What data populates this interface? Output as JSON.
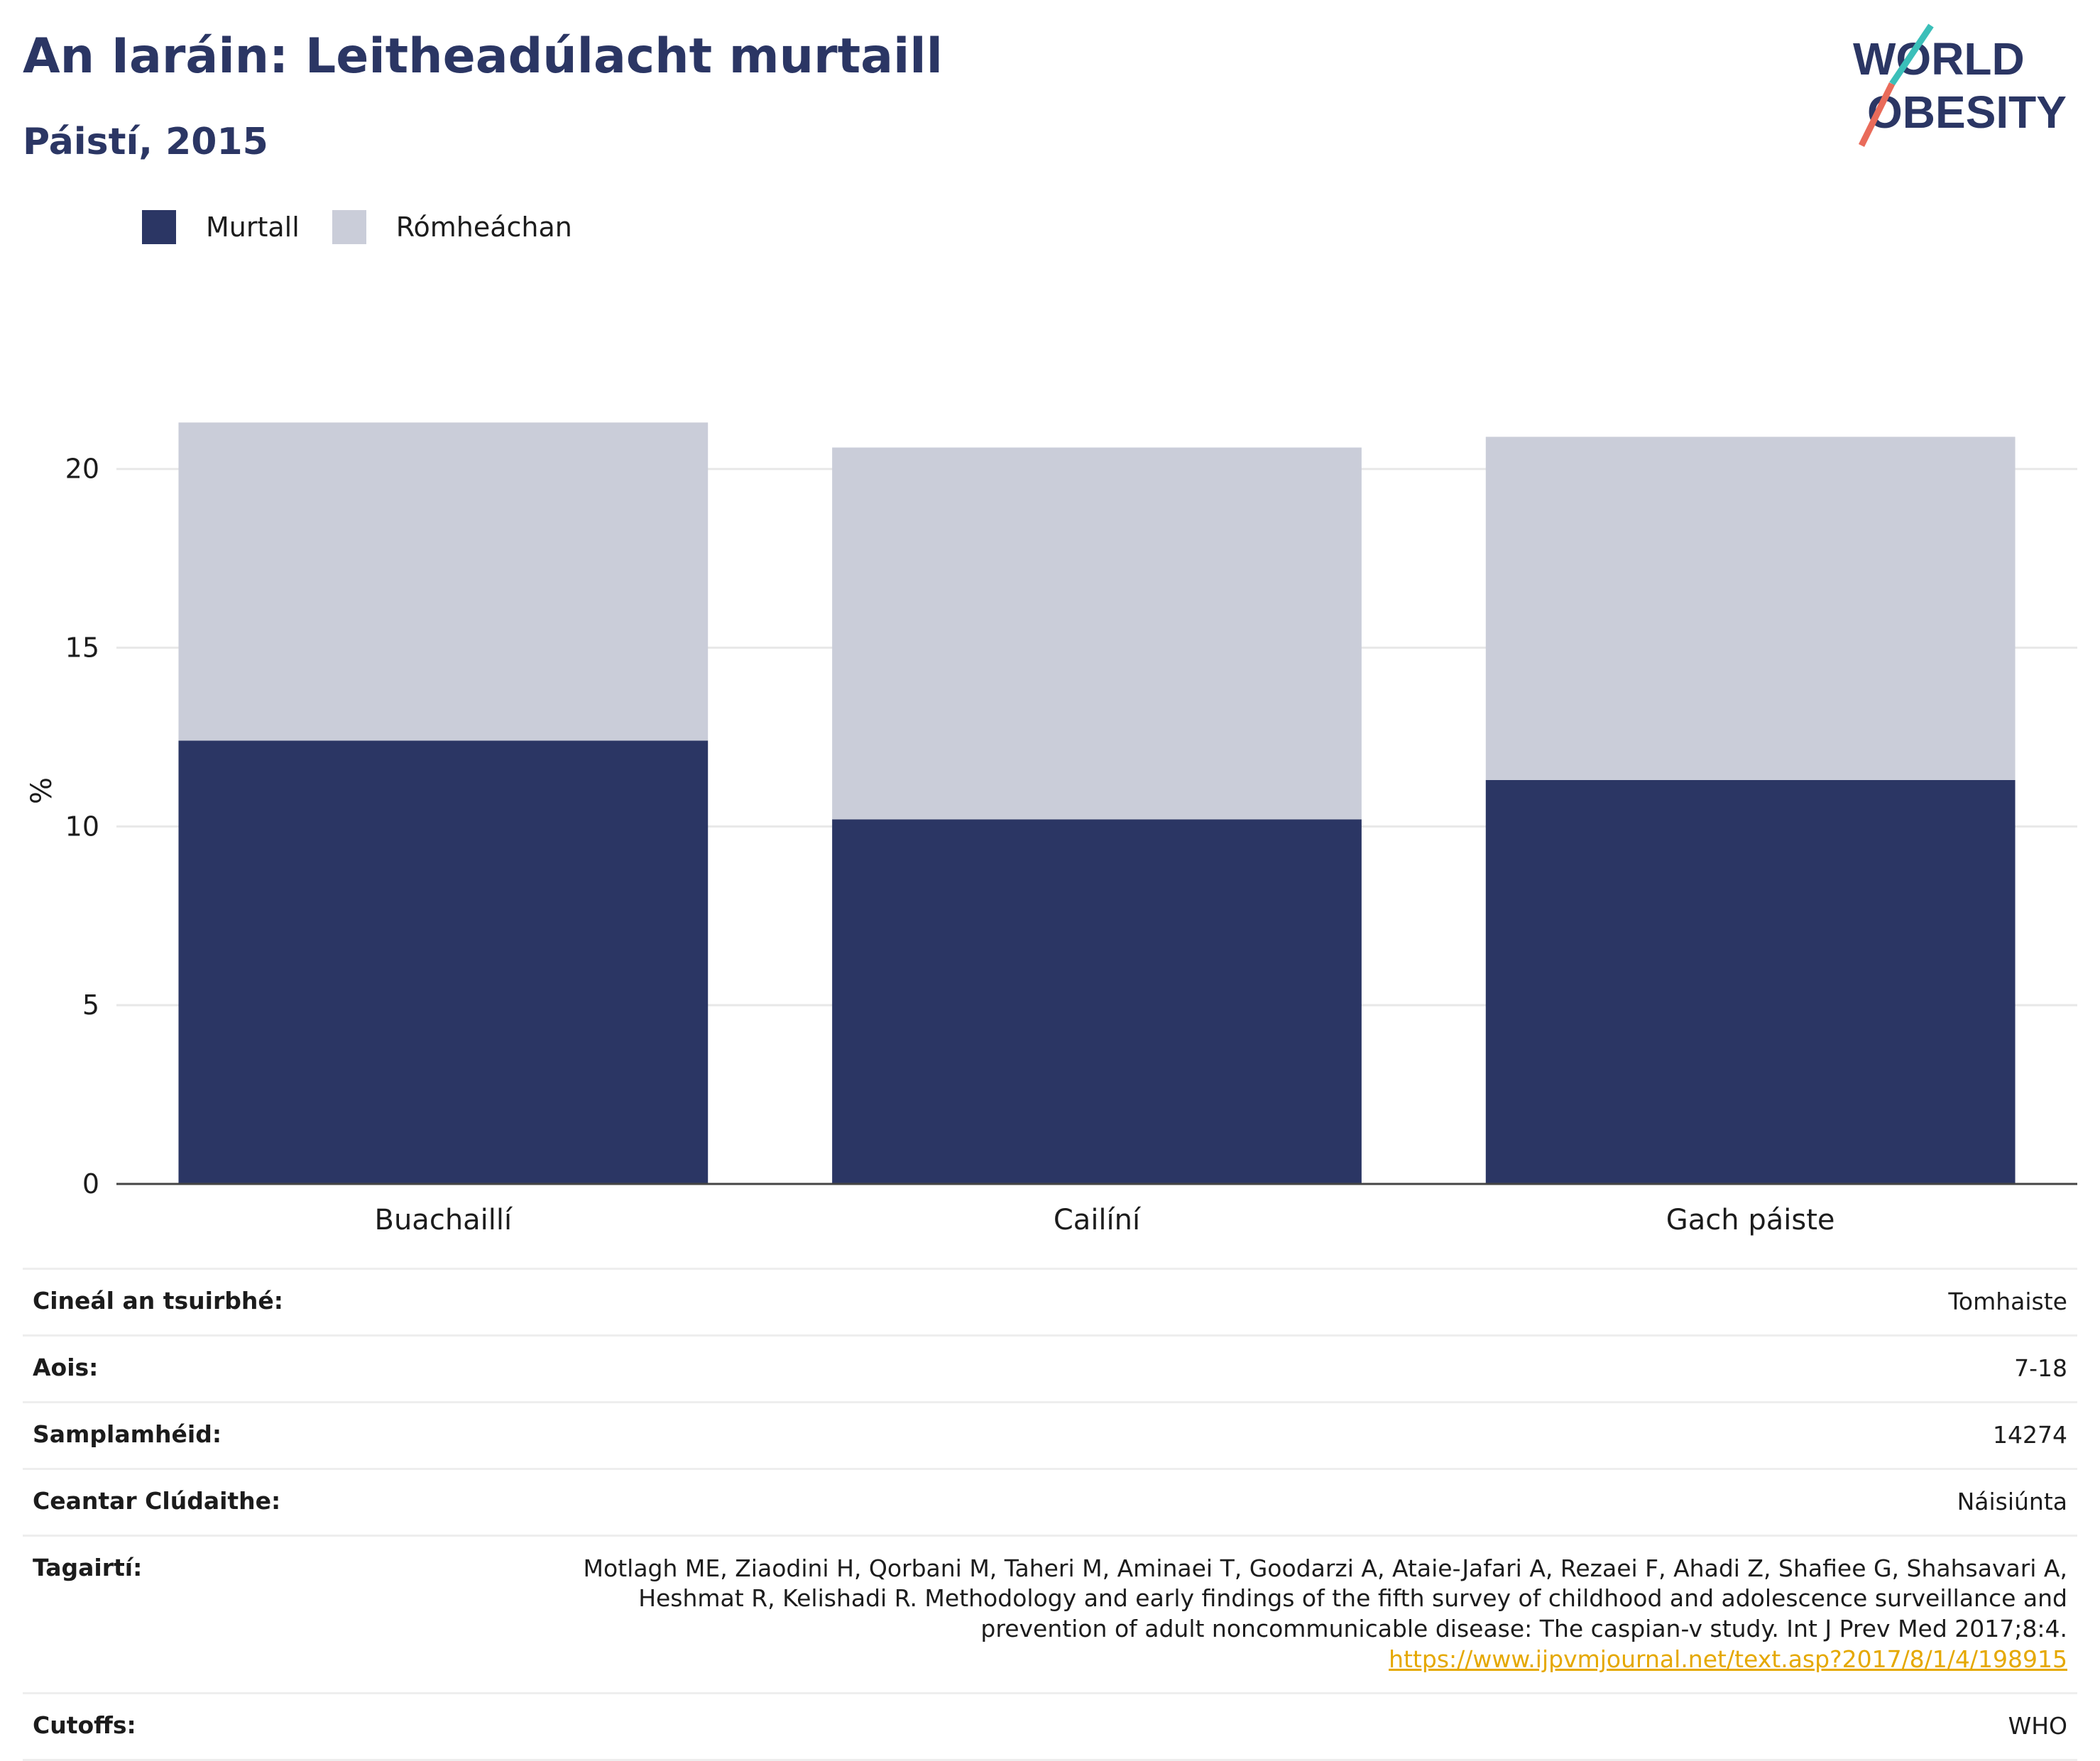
{
  "header": {
    "title": "An Iaráin: Leitheadúlacht murtaill",
    "subtitle": "Páistí, 2015"
  },
  "logo": {
    "text": "WORLD OBESITY"
  },
  "chart_data": {
    "type": "bar",
    "stacked": true,
    "categories": [
      "Buachaillí",
      "Cailíní",
      "Gach páiste"
    ],
    "series": [
      {
        "name": "Murtall",
        "color": "#2b3664",
        "values": [
          12.4,
          10.2,
          11.3
        ]
      },
      {
        "name": "Rómheáchan",
        "color": "#cacdd9",
        "values": [
          8.9,
          10.4,
          9.6
        ]
      }
    ],
    "ylabel": "%",
    "ylim": [
      0,
      22
    ],
    "yticks": [
      0,
      5,
      10,
      15,
      20
    ],
    "grid": true,
    "legend": "top-left"
  },
  "meta": {
    "rows": [
      {
        "key": "Cineál an tsuirbhé:",
        "value": "Tomhaiste"
      },
      {
        "key": "Aois:",
        "value": "7-18"
      },
      {
        "key": "Samplamhéid:",
        "value": "14274"
      },
      {
        "key": "Ceantar Clúdaithe:",
        "value": "Náisiúnta"
      }
    ],
    "references": {
      "key": "Tagairtí:",
      "text": "Motlagh ME, Ziaodini H, Qorbani M, Taheri M, Aminaei T, Goodarzi A, Ataie-Jafari A, Rezaei F, Ahadi Z, Shafiee G, Shahsavari A, Heshmat R, Kelishadi R. Methodology and early findings of the fifth survey of childhood and adolescence surveillance and prevention of adult noncommunicable disease: The caspian-v study. Int J Prev Med 2017;8:4.",
      "link": "https://www.ijpvmjournal.net/text.asp?2017/8/1/4/198915"
    },
    "cutoffs": {
      "key": "Cutoffs:",
      "value": "WHO"
    }
  }
}
